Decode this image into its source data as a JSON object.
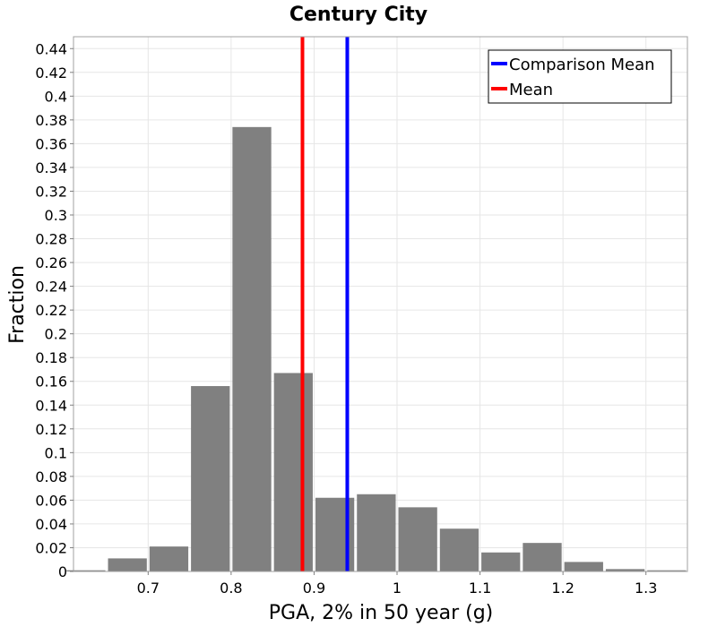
{
  "chart_data": {
    "type": "bar",
    "title": "Century City",
    "xlabel": "PGA, 2% in 50 year (g)",
    "ylabel": "Fraction",
    "xlim": [
      0.61,
      1.35
    ],
    "ylim": [
      0,
      0.45
    ],
    "xticks": [
      0.7,
      0.8,
      0.9,
      1,
      1.1,
      1.2,
      1.3
    ],
    "xtick_labels": [
      "0.7",
      "0.8",
      "0.9",
      "1",
      "1.1",
      "1.2",
      "1.3"
    ],
    "yticks": [
      0,
      0.02,
      0.04,
      0.06,
      0.08,
      0.1,
      0.12,
      0.14,
      0.16,
      0.18,
      0.2,
      0.22,
      0.24,
      0.26,
      0.28,
      0.3,
      0.32,
      0.34,
      0.36,
      0.38,
      0.4,
      0.42,
      0.44
    ],
    "ytick_labels": [
      "0",
      "0.02",
      "0.04",
      "0.06",
      "0.08",
      "0.1",
      "0.12",
      "0.14",
      "0.16",
      "0.18",
      "0.2",
      "0.22",
      "0.24",
      "0.26",
      "0.28",
      "0.3",
      "0.32",
      "0.34",
      "0.36",
      "0.38",
      "0.4",
      "0.42",
      "0.44"
    ],
    "grid": true,
    "bin_width": 0.05,
    "bin_centers": [
      0.625,
      0.675,
      0.725,
      0.775,
      0.825,
      0.875,
      0.925,
      0.975,
      1.025,
      1.075,
      1.125,
      1.175,
      1.225,
      1.275,
      1.325
    ],
    "values": [
      0.001,
      0.011,
      0.021,
      0.156,
      0.374,
      0.167,
      0.062,
      0.065,
      0.054,
      0.036,
      0.016,
      0.024,
      0.008,
      0.002,
      0.001
    ],
    "bar_color": "#808080",
    "vlines": [
      {
        "name": "Comparison Mean",
        "x": 0.94,
        "color": "#0000ff"
      },
      {
        "name": "Mean",
        "x": 0.886,
        "color": "#ff0000"
      }
    ],
    "legend": [
      "Comparison Mean",
      "Mean"
    ],
    "legend_position": "top-right"
  }
}
